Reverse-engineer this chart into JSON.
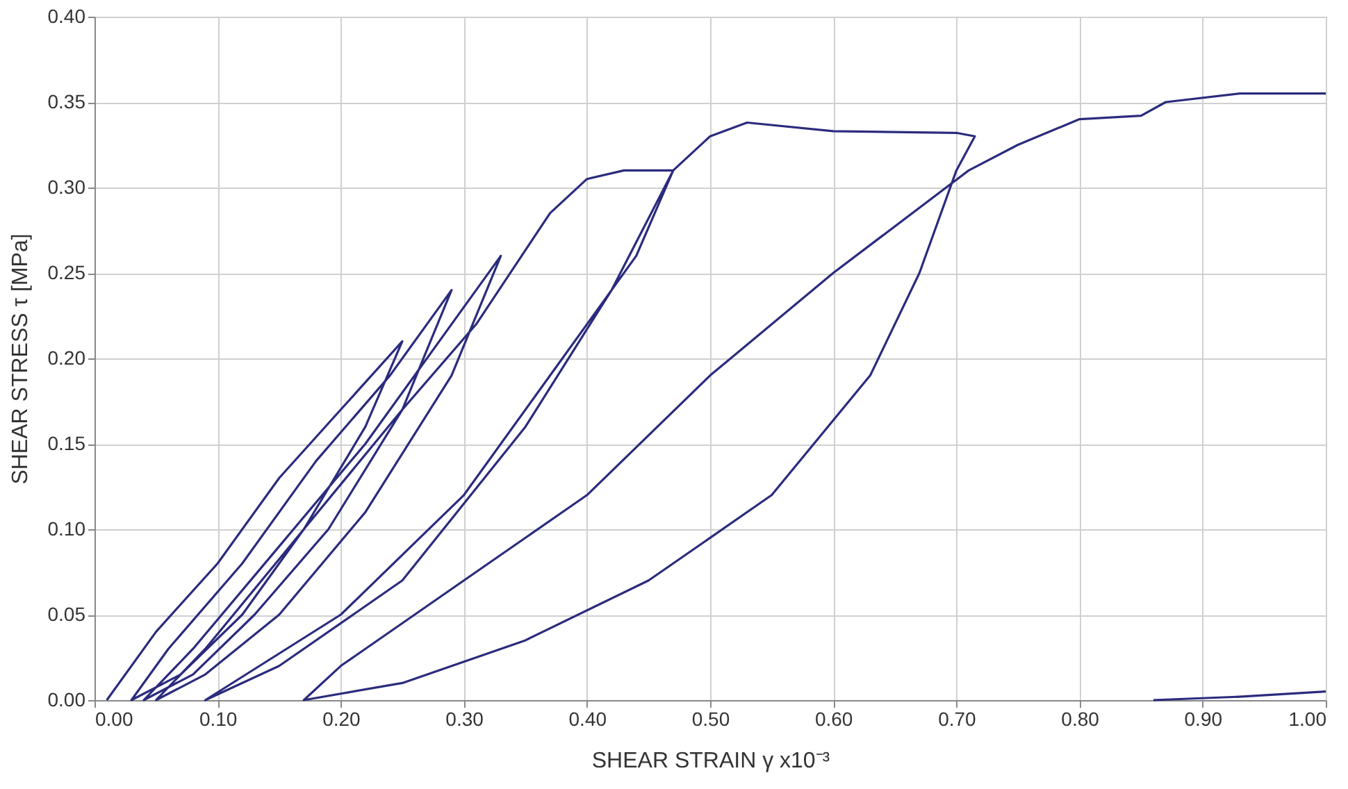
{
  "chart_data": {
    "type": "line",
    "xlabel": "SHEAR STRAIN γ x10⁻³",
    "ylabel": "SHEAR STRESS τ [MPa]",
    "xlim": [
      0,
      1
    ],
    "ylim": [
      0,
      0.4
    ],
    "xticks": [
      {
        "value": 0,
        "label": "0.00"
      },
      {
        "value": 0.1,
        "label": "0.10"
      },
      {
        "value": 0.2,
        "label": "0.20"
      },
      {
        "value": 0.3,
        "label": "0.30"
      },
      {
        "value": 0.4,
        "label": "0.40"
      },
      {
        "value": 0.5,
        "label": "0.50"
      },
      {
        "value": 0.6,
        "label": "0.60"
      },
      {
        "value": 0.7,
        "label": "0.70"
      },
      {
        "value": 0.8,
        "label": "0.80"
      },
      {
        "value": 0.9,
        "label": "0.90"
      },
      {
        "value": 1,
        "label": "1.00"
      }
    ],
    "yticks": [
      {
        "value": 0,
        "label": "0.00"
      },
      {
        "value": 0.05,
        "label": "0.05"
      },
      {
        "value": 0.1,
        "label": "0.10"
      },
      {
        "value": 0.15,
        "label": "0.15"
      },
      {
        "value": 0.2,
        "label": "0.20"
      },
      {
        "value": 0.25,
        "label": "0.25"
      },
      {
        "value": 0.3,
        "label": "0.30"
      },
      {
        "value": 0.35,
        "label": "0.35"
      },
      {
        "value": 0.4,
        "label": "0.40"
      }
    ],
    "grid": true,
    "legend": false,
    "marker": "none",
    "line_style": "solid",
    "series": [
      {
        "color": "#2b2b7e",
        "x": [
          0.01,
          0.05,
          0.1,
          0.15,
          0.2,
          0.25,
          0.22,
          0.17,
          0.12,
          0.07,
          0.03,
          0.06,
          0.12,
          0.18,
          0.24,
          0.29,
          0.25,
          0.19,
          0.13,
          0.08,
          0.04,
          0.08,
          0.15,
          0.22,
          0.28,
          0.33,
          0.29,
          0.22,
          0.15,
          0.09,
          0.05,
          0.09,
          0.17,
          0.25,
          0.31,
          0.37,
          0.4,
          0.43,
          0.47,
          0.42,
          0.35,
          0.25,
          0.15,
          0.09,
          0.2,
          0.3,
          0.38,
          0.44,
          0.47,
          0.5,
          0.53,
          0.6,
          0.7,
          0.715,
          0.7,
          0.67,
          0.63,
          0.55,
          0.45,
          0.35,
          0.25,
          0.17,
          0.2,
          0.3,
          0.4,
          0.5,
          0.6,
          0.71,
          0.75,
          0.8,
          0.85,
          0.87,
          0.93,
          1.0
        ],
        "values": [
          0,
          0.04,
          0.08,
          0.13,
          0.17,
          0.21,
          0.16,
          0.1,
          0.05,
          0.015,
          0,
          0.03,
          0.08,
          0.14,
          0.19,
          0.24,
          0.17,
          0.1,
          0.05,
          0.015,
          0,
          0.03,
          0.09,
          0.15,
          0.21,
          0.26,
          0.19,
          0.11,
          0.05,
          0.015,
          0,
          0.03,
          0.1,
          0.17,
          0.22,
          0.285,
          0.305,
          0.31,
          0.31,
          0.24,
          0.16,
          0.07,
          0.02,
          0,
          0.05,
          0.12,
          0.2,
          0.26,
          0.31,
          0.33,
          0.338,
          0.333,
          0.332,
          0.33,
          0.31,
          0.25,
          0.19,
          0.12,
          0.07,
          0.035,
          0.01,
          0,
          0.02,
          0.07,
          0.12,
          0.19,
          0.25,
          0.31,
          0.325,
          0.34,
          0.342,
          0.35,
          0.355,
          0.355
        ]
      },
      {
        "color": "#2b2b7e",
        "x": [
          0.86,
          0.93,
          1.0
        ],
        "values": [
          0,
          0.002,
          0.005
        ]
      }
    ]
  }
}
